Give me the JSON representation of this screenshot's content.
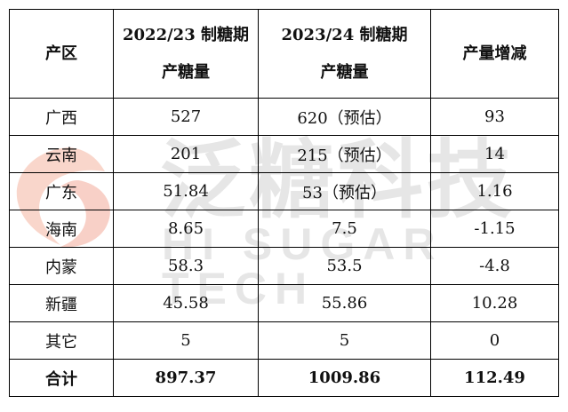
{
  "watermark": {
    "cn": "泛糖科技",
    "en": "HI SUGAR TECH",
    "logo_color": "#f5b7a8"
  },
  "headers": [
    "产区",
    "2022/23 制糖期",
    "产糖量",
    "2023/24 制糖期",
    "产糖量",
    "产量增减"
  ],
  "rows": [
    [
      "广西",
      "527",
      "620（预估）",
      "93"
    ],
    [
      "云南",
      "201",
      "215（预估）",
      "14"
    ],
    [
      "广东",
      "51.84",
      "53（预估）",
      "1.16"
    ],
    [
      "海南",
      "8.65",
      "7.5",
      "-1.15"
    ],
    [
      "内蒙",
      "58.3",
      "53.5",
      "-4.8"
    ],
    [
      "新疆",
      "45.58",
      "55.86",
      "10.28"
    ],
    [
      "其它",
      "5",
      "5",
      "0"
    ]
  ],
  "total": [
    "合计",
    "897.37",
    "1009.86",
    "112.49"
  ]
}
